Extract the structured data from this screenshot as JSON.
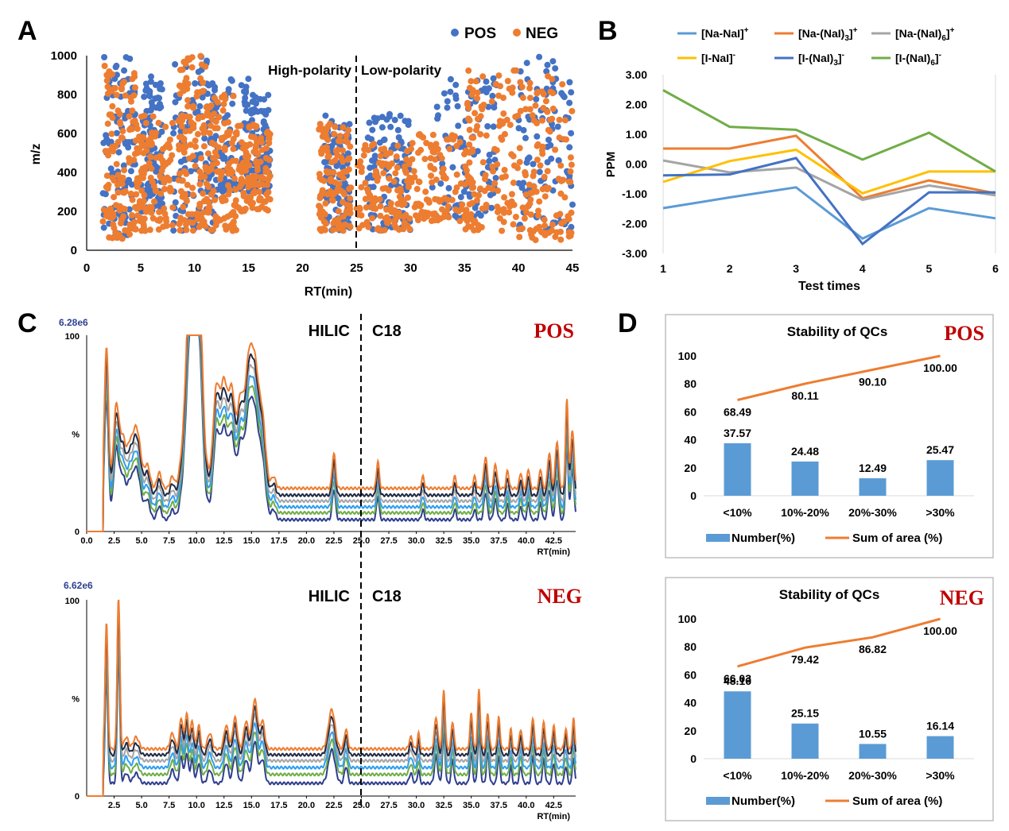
{
  "figure": {
    "panel_letters": [
      "A",
      "B",
      "C",
      "D"
    ]
  },
  "colors": {
    "pos": "#4472c4",
    "neg": "#ed7d31",
    "red_label": "#c00000",
    "bar": "#5b9bd5",
    "line": "#ed7d31"
  },
  "chart_data": [
    {
      "panel": "A",
      "type": "scatter",
      "xlabel": "RT(min)",
      "ylabel": "m/z",
      "xlim": [
        0,
        45
      ],
      "ylim": [
        0,
        1000
      ],
      "x_ticks": [
        "0",
        "5",
        "10",
        "15",
        "20",
        "25",
        "30",
        "35",
        "40",
        "45"
      ],
      "y_ticks": [
        "0",
        "200",
        "400",
        "600",
        "800",
        "1000"
      ],
      "divider_x": 25,
      "annotations": [
        "High-polarity",
        "Low-polarity"
      ],
      "series": [
        {
          "name": "POS",
          "color": "#4472c4",
          "point_count": 900,
          "clusters": [
            [
              1.5,
              4.5,
              60,
              1000
            ],
            [
              5,
              7,
              200,
              900
            ],
            [
              8,
              12,
              100,
              1000
            ],
            [
              11,
              15,
              300,
              900
            ],
            [
              15,
              17,
              300,
              800
            ],
            [
              22,
              24.5,
              100,
              700
            ],
            [
              26,
              30,
              100,
              700
            ],
            [
              32,
              38,
              150,
              900
            ],
            [
              40,
              45,
              100,
              1000
            ]
          ]
        },
        {
          "name": "NEG",
          "color": "#ed7d31",
          "point_count": 1200,
          "clusters": [
            [
              1.5,
              4.5,
              60,
              950
            ],
            [
              4.5,
              8,
              100,
              700
            ],
            [
              8.5,
              11,
              100,
              1000
            ],
            [
              11,
              14,
              100,
              800
            ],
            [
              14,
              17,
              200,
              650
            ],
            [
              21.5,
              24.5,
              100,
              650
            ],
            [
              25,
              30,
              100,
              550
            ],
            [
              30,
              36,
              150,
              600
            ],
            [
              35,
              40,
              100,
              950
            ],
            [
              40,
              45,
              50,
              900
            ]
          ]
        }
      ]
    },
    {
      "panel": "B",
      "type": "line",
      "xlabel": "Test times",
      "ylabel": "PPM",
      "x": [
        1,
        2,
        3,
        4,
        5,
        6
      ],
      "ylim": [
        -3,
        3
      ],
      "y_ticks": [
        "3.00",
        "2.00",
        "1.00",
        "0.00",
        "-1.00",
        "-2.00",
        "-3.00"
      ],
      "series": [
        {
          "name": "[Na-NaI]",
          "sup": "+",
          "color": "#5b9bd5",
          "values": [
            -1.48,
            -1.12,
            -0.78,
            -2.5,
            -1.48,
            -1.82
          ]
        },
        {
          "name": "[Na-(NaI)",
          "sub": "3",
          "close": "]",
          "sup": "+",
          "color": "#ed7d31",
          "values": [
            0.52,
            0.52,
            0.95,
            -1.15,
            -0.55,
            -0.98
          ]
        },
        {
          "name": "[Na-(NaI)",
          "sub": "6",
          "close": "]",
          "sup": "+",
          "color": "#a5a5a5",
          "values": [
            0.12,
            -0.28,
            -0.12,
            -1.2,
            -0.72,
            -1.05
          ]
        },
        {
          "name": "[I-NaI]",
          "sup": "-",
          "color": "#ffc000",
          "values": [
            -0.6,
            0.1,
            0.48,
            -0.98,
            -0.25,
            -0.25
          ]
        },
        {
          "name": "[I-(NaI)",
          "sub": "3",
          "close": "]",
          "sup": "-",
          "color": "#4472c4",
          "values": [
            -0.38,
            -0.35,
            0.2,
            -2.68,
            -0.95,
            -0.95
          ]
        },
        {
          "name": "[I-(NaI)",
          "sub": "6",
          "close": "]",
          "sup": "-",
          "color": "#70ad47",
          "values": [
            2.48,
            1.25,
            1.15,
            0.15,
            1.05,
            -0.25
          ]
        }
      ]
    },
    {
      "panel": "C",
      "mode": "POS",
      "type": "line",
      "max_label": "6.28e6",
      "xlabel": "RT(min)",
      "y_ticks": [
        "100",
        "%",
        "0"
      ],
      "x_ticks": [
        "0.0",
        "2.5",
        "5.0",
        "7.5",
        "10.0",
        "12.5",
        "15.0",
        "17.5",
        "20.0",
        "22.5",
        "25.0",
        "27.5",
        "30.0",
        "32.5",
        "35.0",
        "37.5",
        "40.0",
        "42.5"
      ],
      "xlim": [
        0,
        44.5
      ],
      "labels": [
        "HILIC",
        "C18"
      ],
      "divider_x": 25,
      "trace_colors": [
        "#ed7d31",
        "#1f2a44",
        "#a5a5a5",
        "#2e9ef0",
        "#70ad47",
        "#2f3f8f"
      ],
      "baselines": [
        22,
        18.5,
        15.5,
        12.5,
        9.5,
        6
      ],
      "peaks": [
        [
          1.8,
          0.18,
          72
        ],
        [
          2.7,
          0.25,
          42
        ],
        [
          3.3,
          0.25,
          24
        ],
        [
          3.9,
          0.25,
          20
        ],
        [
          4.4,
          0.25,
          24
        ],
        [
          4.8,
          0.25,
          17
        ],
        [
          5.5,
          0.25,
          12
        ],
        [
          6.6,
          0.2,
          8
        ],
        [
          7.8,
          0.2,
          6
        ],
        [
          8.6,
          0.25,
          8
        ],
        [
          9.3,
          0.35,
          76
        ],
        [
          9.8,
          0.35,
          82
        ],
        [
          10.3,
          0.3,
          74
        ],
        [
          11.0,
          0.2,
          6
        ],
        [
          11.8,
          0.3,
          50
        ],
        [
          12.5,
          0.3,
          50
        ],
        [
          13.2,
          0.3,
          48
        ],
        [
          14.0,
          0.3,
          44
        ],
        [
          14.7,
          0.3,
          52
        ],
        [
          15.3,
          0.35,
          60
        ],
        [
          16.0,
          0.3,
          32
        ],
        [
          17.0,
          0.2,
          6
        ],
        [
          22.5,
          0.15,
          18
        ],
        [
          26.5,
          0.12,
          14
        ],
        [
          30.6,
          0.12,
          6
        ],
        [
          33.5,
          0.12,
          6
        ],
        [
          35.3,
          0.12,
          6
        ],
        [
          36.3,
          0.15,
          16
        ],
        [
          37.2,
          0.15,
          12
        ],
        [
          38.3,
          0.12,
          9
        ],
        [
          39.5,
          0.12,
          8
        ],
        [
          40.2,
          0.12,
          10
        ],
        [
          41.3,
          0.12,
          10
        ],
        [
          42.1,
          0.15,
          18
        ],
        [
          42.8,
          0.15,
          24
        ],
        [
          43.7,
          0.12,
          45
        ],
        [
          44.2,
          0.15,
          30
        ]
      ]
    },
    {
      "panel": "C",
      "mode": "NEG",
      "type": "line",
      "max_label": "6.62e6",
      "xlabel": "RT(min)",
      "y_ticks": [
        "100",
        "%",
        "0"
      ],
      "x_ticks": [
        "2.5",
        "5.0",
        "7.5",
        "10.0",
        "12.5",
        "15.0",
        "17.5",
        "20.0",
        "22.5",
        "25.0",
        "27.5",
        "30.0",
        "32.5",
        "35.0",
        "37.5",
        "40.0",
        "42.5"
      ],
      "xlim": [
        0,
        44.5
      ],
      "labels": [
        "HILIC",
        "C18"
      ],
      "divider_x": 25,
      "trace_colors": [
        "#ed7d31",
        "#1f2a44",
        "#a5a5a5",
        "#2e9ef0",
        "#70ad47",
        "#2f3f8f"
      ],
      "baselines": [
        24,
        21,
        18,
        14.5,
        11,
        6.5
      ],
      "peaks": [
        [
          1.8,
          0.12,
          65
        ],
        [
          2.9,
          0.12,
          78
        ],
        [
          3.6,
          0.2,
          6
        ],
        [
          4.5,
          0.25,
          6
        ],
        [
          7.8,
          0.2,
          8
        ],
        [
          8.6,
          0.15,
          16
        ],
        [
          9.1,
          0.15,
          18
        ],
        [
          9.6,
          0.15,
          14
        ],
        [
          10.2,
          0.15,
          12
        ],
        [
          11.2,
          0.2,
          8
        ],
        [
          12.7,
          0.2,
          12
        ],
        [
          13.5,
          0.2,
          16
        ],
        [
          14.5,
          0.2,
          14
        ],
        [
          15.3,
          0.25,
          25
        ],
        [
          16.0,
          0.2,
          14
        ],
        [
          22.3,
          0.3,
          20
        ],
        [
          23.6,
          0.15,
          10
        ],
        [
          29.5,
          0.15,
          6
        ],
        [
          30.2,
          0.1,
          8
        ],
        [
          31.8,
          0.15,
          16
        ],
        [
          32.5,
          0.12,
          30
        ],
        [
          33.3,
          0.12,
          14
        ],
        [
          35.0,
          0.12,
          18
        ],
        [
          35.7,
          0.12,
          30
        ],
        [
          36.5,
          0.12,
          18
        ],
        [
          37.5,
          0.12,
          16
        ],
        [
          38.6,
          0.1,
          10
        ],
        [
          39.5,
          0.12,
          10
        ],
        [
          40.6,
          0.12,
          16
        ],
        [
          41.6,
          0.12,
          14
        ],
        [
          42.5,
          0.12,
          12
        ],
        [
          43.6,
          0.12,
          10
        ],
        [
          44.3,
          0.1,
          16
        ]
      ]
    },
    {
      "panel": "D",
      "mode": "POS",
      "type": "bar+line",
      "title": "Stability of QCs",
      "categories": [
        "<10%",
        "10%-20%",
        "20%-30%",
        ">30%"
      ],
      "ylim": [
        0,
        100
      ],
      "y_ticks": [
        "100",
        "80",
        "60",
        "40",
        "20",
        "0"
      ],
      "series": [
        {
          "name": "Number(%)",
          "type": "bar",
          "values": [
            37.57,
            24.48,
            12.49,
            25.47
          ],
          "labels": [
            "37.57",
            "24.48",
            "12.49",
            "25.47"
          ]
        },
        {
          "name": "Sum of area (%)",
          "type": "line",
          "values": [
            68.49,
            80.11,
            90.1,
            100.0
          ],
          "labels": [
            "68.49",
            "80.11",
            "90.10",
            "100.00"
          ]
        }
      ]
    },
    {
      "panel": "D",
      "mode": "NEG",
      "type": "bar+line",
      "title": "Stability of QCs",
      "categories": [
        "<10%",
        "10%-20%",
        "20%-30%",
        ">30%"
      ],
      "ylim": [
        0,
        100
      ],
      "y_ticks": [
        "100",
        "80",
        "60",
        "40",
        "20",
        "0"
      ],
      "series": [
        {
          "name": "Number(%)",
          "type": "bar",
          "values": [
            48.16,
            25.15,
            10.55,
            16.14
          ],
          "labels": [
            "48.16",
            "25.15",
            "10.55",
            "16.14"
          ]
        },
        {
          "name": "Sum of area (%)",
          "type": "line",
          "values": [
            66.03,
            79.42,
            86.82,
            100.0
          ],
          "labels": [
            "66.03",
            "79.42",
            "86.82",
            "100.00"
          ]
        }
      ]
    }
  ]
}
